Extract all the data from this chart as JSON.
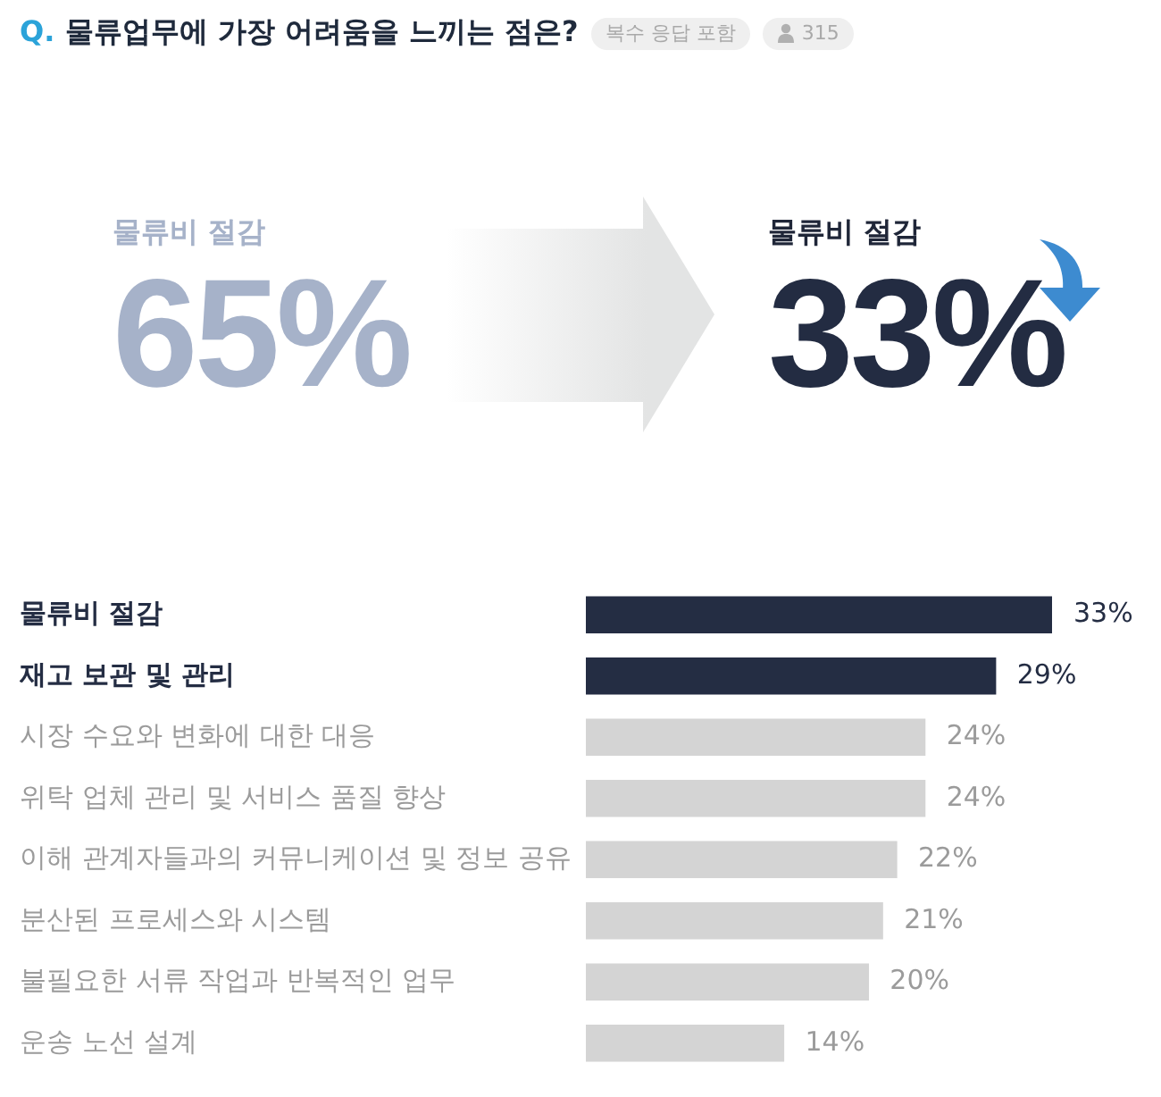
{
  "chart_data": {
    "type": "bar",
    "orientation": "horizontal",
    "title": "Q. 물류업무에 가장 어려움을 느끼는 점은?",
    "subtitle": "복수 응답 포함",
    "annotations": [
      "315",
      "물류비 절감",
      "65%",
      "물류비 절감",
      "33%"
    ],
    "categories": [
      "물류비 절감",
      "재고 보관 및 관리",
      "시장 수요와 변화에 대한 대응",
      "위탁 업체 관리 및 서비스 품질 향상",
      "이해 관계자들과의 커뮤니케이션 및 정보 공유",
      "분산된 프로세스와 시스템",
      "불필요한 서류 작업과 반복적인 업무",
      "운송 노선 설계"
    ],
    "values": [
      33,
      29,
      24,
      24,
      22,
      21,
      20,
      14
    ],
    "colors": [
      "#242d43",
      "#242d43",
      "#d4d4d4",
      "#d4d4d4",
      "#d4d4d4",
      "#d4d4d4",
      "#d4d4d4",
      "#d4d4d4"
    ],
    "value_labels": [
      "33%",
      "29%",
      "24%",
      "24%",
      "22%",
      "21%",
      "20%",
      "14%"
    ],
    "tick_labels": "y"
  }
}
